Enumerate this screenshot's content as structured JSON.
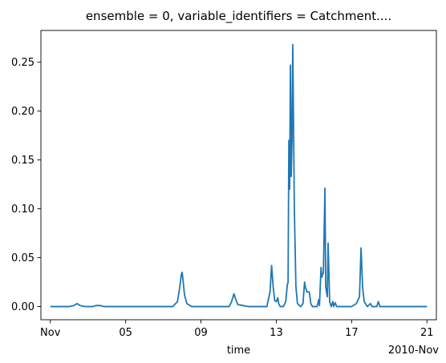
{
  "chart_data": {
    "type": "line",
    "title": "ensemble = 0, variable_identifiers = Catchment....",
    "xlabel": "time",
    "ylabel": "",
    "x_offset_label": "2010-Nov",
    "x_axis": {
      "type": "date",
      "range": [
        "2010-10-31T12:00",
        "2010-11-21T12:00"
      ],
      "ticks": [
        {
          "value": "2010-11-01",
          "label": "Nov"
        },
        {
          "value": "2010-11-05",
          "label": "05"
        },
        {
          "value": "2010-11-09",
          "label": "09"
        },
        {
          "value": "2010-11-13",
          "label": "13"
        },
        {
          "value": "2010-11-17",
          "label": "17"
        },
        {
          "value": "2010-11-21",
          "label": "21"
        }
      ]
    },
    "y_axis": {
      "range": [
        -0.0135,
        0.2825
      ],
      "ticks": [
        {
          "value": 0.0,
          "label": "0.00"
        },
        {
          "value": 0.05,
          "label": "0.05"
        },
        {
          "value": 0.1,
          "label": "0.10"
        },
        {
          "value": 0.15,
          "label": "0.15"
        },
        {
          "value": 0.2,
          "label": "0.20"
        },
        {
          "value": 0.25,
          "label": "0.25"
        }
      ]
    },
    "grid": false,
    "legend": "none",
    "series": [
      {
        "color": "#1f77b4",
        "points": [
          [
            "2010-11-01T00:00",
            0.0
          ],
          [
            "2010-11-02T00:00",
            0.0
          ],
          [
            "2010-11-02T06:00",
            0.001
          ],
          [
            "2010-11-02T10:00",
            0.003
          ],
          [
            "2010-11-02T14:00",
            0.001
          ],
          [
            "2010-11-02T20:00",
            0.0
          ],
          [
            "2010-11-03T06:00",
            0.0
          ],
          [
            "2010-11-03T10:00",
            0.001
          ],
          [
            "2010-11-03T16:00",
            0.001
          ],
          [
            "2010-11-03T20:00",
            0.0
          ],
          [
            "2010-11-07T12:00",
            0.0
          ],
          [
            "2010-11-07T18:00",
            0.005
          ],
          [
            "2010-11-07T21:00",
            0.02
          ],
          [
            "2010-11-07T23:00",
            0.033
          ],
          [
            "2010-11-08T00:00",
            0.035
          ],
          [
            "2010-11-08T01:00",
            0.028
          ],
          [
            "2010-11-08T03:00",
            0.012
          ],
          [
            "2010-11-08T06:00",
            0.003
          ],
          [
            "2010-11-08T12:00",
            0.0
          ],
          [
            "2010-11-10T12:00",
            0.0
          ],
          [
            "2010-11-10T15:00",
            0.005
          ],
          [
            "2010-11-10T18:00",
            0.013
          ],
          [
            "2010-11-10T20:00",
            0.008
          ],
          [
            "2010-11-10T23:00",
            0.002
          ],
          [
            "2010-11-11T06:00",
            0.001
          ],
          [
            "2010-11-11T12:00",
            0.0
          ],
          [
            "2010-11-12T12:00",
            0.0
          ],
          [
            "2010-11-12T16:00",
            0.015
          ],
          [
            "2010-11-12T18:00",
            0.042
          ],
          [
            "2010-11-12T20:00",
            0.02
          ],
          [
            "2010-11-12T22:00",
            0.006
          ],
          [
            "2010-11-13T00:00",
            0.005
          ],
          [
            "2010-11-13T02:00",
            0.009
          ],
          [
            "2010-11-13T03:00",
            0.003
          ],
          [
            "2010-11-13T05:00",
            0.0
          ],
          [
            "2010-11-13T09:00",
            0.0
          ],
          [
            "2010-11-13T12:00",
            0.005
          ],
          [
            "2010-11-13T14:00",
            0.022
          ],
          [
            "2010-11-13T15:00",
            0.025
          ],
          [
            "2010-11-13T16:00",
            0.17
          ],
          [
            "2010-11-13T17:00",
            0.12
          ],
          [
            "2010-11-13T18:00",
            0.247
          ],
          [
            "2010-11-13T19:00",
            0.133
          ],
          [
            "2010-11-13T20:00",
            0.17
          ],
          [
            "2010-11-13T21:00",
            0.268
          ],
          [
            "2010-11-13T23:00",
            0.1
          ],
          [
            "2010-11-14T01:00",
            0.02
          ],
          [
            "2010-11-14T03:00",
            0.003
          ],
          [
            "2010-11-14T07:00",
            0.0
          ],
          [
            "2010-11-14T10:00",
            0.003
          ],
          [
            "2010-11-14T12:00",
            0.025
          ],
          [
            "2010-11-14T13:00",
            0.02
          ],
          [
            "2010-11-14T15:00",
            0.015
          ],
          [
            "2010-11-14T18:00",
            0.015
          ],
          [
            "2010-11-14T20:00",
            0.003
          ],
          [
            "2010-11-14T22:00",
            0.0
          ],
          [
            "2010-11-15T04:00",
            0.0
          ],
          [
            "2010-11-15T06:00",
            0.007
          ],
          [
            "2010-11-15T07:00",
            0.001
          ],
          [
            "2010-11-15T09:00",
            0.04
          ],
          [
            "2010-11-15T10:00",
            0.03
          ],
          [
            "2010-11-15T12:00",
            0.035
          ],
          [
            "2010-11-15T14:00",
            0.121
          ],
          [
            "2010-11-15T15:00",
            0.02
          ],
          [
            "2010-11-15T17:00",
            0.01
          ],
          [
            "2010-11-15T18:00",
            0.065
          ],
          [
            "2010-11-15T20:00",
            0.005
          ],
          [
            "2010-11-15T22:00",
            0.0
          ],
          [
            "2010-11-16T00:00",
            0.005
          ],
          [
            "2010-11-16T01:00",
            0.0
          ],
          [
            "2010-11-16T03:00",
            0.004
          ],
          [
            "2010-11-16T05:00",
            0.0
          ],
          [
            "2010-11-17T00:00",
            0.0
          ],
          [
            "2010-11-17T06:00",
            0.003
          ],
          [
            "2010-11-17T10:00",
            0.01
          ],
          [
            "2010-11-17T12:00",
            0.06
          ],
          [
            "2010-11-17T14:00",
            0.02
          ],
          [
            "2010-11-17T16:00",
            0.005
          ],
          [
            "2010-11-17T20:00",
            0.0
          ],
          [
            "2010-11-18T00:00",
            0.003
          ],
          [
            "2010-11-18T02:00",
            0.0
          ],
          [
            "2010-11-18T08:00",
            0.0
          ],
          [
            "2010-11-18T10:00",
            0.005
          ],
          [
            "2010-11-18T12:00",
            0.0
          ],
          [
            "2010-11-21T00:00",
            0.0
          ]
        ]
      }
    ]
  }
}
